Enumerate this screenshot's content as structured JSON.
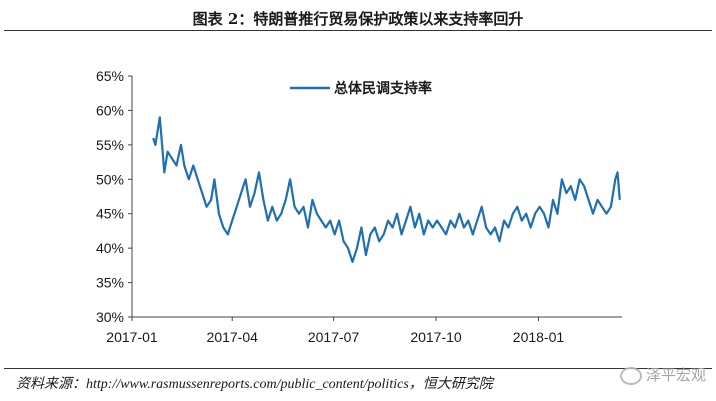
{
  "header": {
    "title": "图表 2：特朗普推行贸易保护政策以来支持率回升"
  },
  "footer": {
    "source": "资料来源：http://www.rasmussenreports.com/public_content/politics，恒大研究院",
    "watermark": "泽平宏观",
    "watermark_icon": "wechat-icon"
  },
  "chart_data": {
    "type": "line",
    "title": "图表 2：特朗普推行贸易保护政策以来支持率回升",
    "xlabel": "",
    "ylabel": "",
    "ylim": [
      30,
      65
    ],
    "y_ticks": [
      "30%",
      "35%",
      "40%",
      "45%",
      "50%",
      "55%",
      "60%",
      "65%"
    ],
    "x_ticks": [
      "2017-01",
      "2017-04",
      "2017-07",
      "2017-10",
      "2018-01"
    ],
    "grid": false,
    "legend_position": "top-center",
    "series": [
      {
        "name": "总体民调支持率",
        "color": "#1f6fb2",
        "points": [
          [
            "2017-01-20",
            56
          ],
          [
            "2017-01-22",
            55
          ],
          [
            "2017-01-24",
            57
          ],
          [
            "2017-01-26",
            59
          ],
          [
            "2017-01-28",
            55
          ],
          [
            "2017-01-30",
            51
          ],
          [
            "2017-02-02",
            54
          ],
          [
            "2017-02-06",
            53
          ],
          [
            "2017-02-10",
            52
          ],
          [
            "2017-02-14",
            55
          ],
          [
            "2017-02-17",
            52
          ],
          [
            "2017-02-21",
            50
          ],
          [
            "2017-02-25",
            52
          ],
          [
            "2017-03-01",
            50
          ],
          [
            "2017-03-05",
            48
          ],
          [
            "2017-03-09",
            46
          ],
          [
            "2017-03-13",
            47
          ],
          [
            "2017-03-16",
            50
          ],
          [
            "2017-03-20",
            45
          ],
          [
            "2017-03-24",
            43
          ],
          [
            "2017-03-28",
            42
          ],
          [
            "2017-04-01",
            44
          ],
          [
            "2017-04-05",
            46
          ],
          [
            "2017-04-09",
            48
          ],
          [
            "2017-04-13",
            50
          ],
          [
            "2017-04-17",
            46
          ],
          [
            "2017-04-21",
            48
          ],
          [
            "2017-04-25",
            51
          ],
          [
            "2017-04-29",
            47
          ],
          [
            "2017-05-03",
            44
          ],
          [
            "2017-05-07",
            46
          ],
          [
            "2017-05-11",
            44
          ],
          [
            "2017-05-15",
            45
          ],
          [
            "2017-05-19",
            47
          ],
          [
            "2017-05-23",
            50
          ],
          [
            "2017-05-27",
            46
          ],
          [
            "2017-05-31",
            45
          ],
          [
            "2017-06-04",
            46
          ],
          [
            "2017-06-08",
            43
          ],
          [
            "2017-06-12",
            47
          ],
          [
            "2017-06-16",
            45
          ],
          [
            "2017-06-20",
            44
          ],
          [
            "2017-06-24",
            43
          ],
          [
            "2017-06-28",
            44
          ],
          [
            "2017-07-02",
            42
          ],
          [
            "2017-07-06",
            44
          ],
          [
            "2017-07-10",
            41
          ],
          [
            "2017-07-14",
            40
          ],
          [
            "2017-07-18",
            38
          ],
          [
            "2017-07-22",
            40
          ],
          [
            "2017-07-26",
            43
          ],
          [
            "2017-07-30",
            39
          ],
          [
            "2017-08-03",
            42
          ],
          [
            "2017-08-07",
            43
          ],
          [
            "2017-08-11",
            41
          ],
          [
            "2017-08-15",
            42
          ],
          [
            "2017-08-19",
            44
          ],
          [
            "2017-08-23",
            43
          ],
          [
            "2017-08-27",
            45
          ],
          [
            "2017-08-31",
            42
          ],
          [
            "2017-09-04",
            44
          ],
          [
            "2017-09-08",
            46
          ],
          [
            "2017-09-12",
            43
          ],
          [
            "2017-09-16",
            45
          ],
          [
            "2017-09-20",
            42
          ],
          [
            "2017-09-24",
            44
          ],
          [
            "2017-09-28",
            43
          ],
          [
            "2017-10-02",
            44
          ],
          [
            "2017-10-06",
            43
          ],
          [
            "2017-10-10",
            42
          ],
          [
            "2017-10-14",
            44
          ],
          [
            "2017-10-18",
            43
          ],
          [
            "2017-10-22",
            45
          ],
          [
            "2017-10-26",
            43
          ],
          [
            "2017-10-30",
            44
          ],
          [
            "2017-11-03",
            42
          ],
          [
            "2017-11-07",
            44
          ],
          [
            "2017-11-11",
            46
          ],
          [
            "2017-11-15",
            43
          ],
          [
            "2017-11-19",
            42
          ],
          [
            "2017-11-23",
            43
          ],
          [
            "2017-11-27",
            41
          ],
          [
            "2017-12-01",
            44
          ],
          [
            "2017-12-05",
            43
          ],
          [
            "2017-12-09",
            45
          ],
          [
            "2017-12-13",
            46
          ],
          [
            "2017-12-17",
            44
          ],
          [
            "2017-12-21",
            45
          ],
          [
            "2017-12-25",
            43
          ],
          [
            "2017-12-29",
            45
          ],
          [
            "2018-01-02",
            46
          ],
          [
            "2018-01-06",
            45
          ],
          [
            "2018-01-10",
            43
          ],
          [
            "2018-01-14",
            47
          ],
          [
            "2018-01-18",
            45
          ],
          [
            "2018-01-22",
            50
          ],
          [
            "2018-01-26",
            48
          ],
          [
            "2018-01-30",
            49
          ],
          [
            "2018-02-03",
            47
          ],
          [
            "2018-02-07",
            50
          ],
          [
            "2018-02-11",
            49
          ],
          [
            "2018-02-15",
            47
          ],
          [
            "2018-02-19",
            45
          ],
          [
            "2018-02-23",
            47
          ],
          [
            "2018-02-27",
            46
          ],
          [
            "2018-03-03",
            45
          ],
          [
            "2018-03-07",
            46
          ],
          [
            "2018-03-11",
            50
          ],
          [
            "2018-03-13",
            51
          ],
          [
            "2018-03-15",
            47
          ]
        ]
      }
    ]
  }
}
